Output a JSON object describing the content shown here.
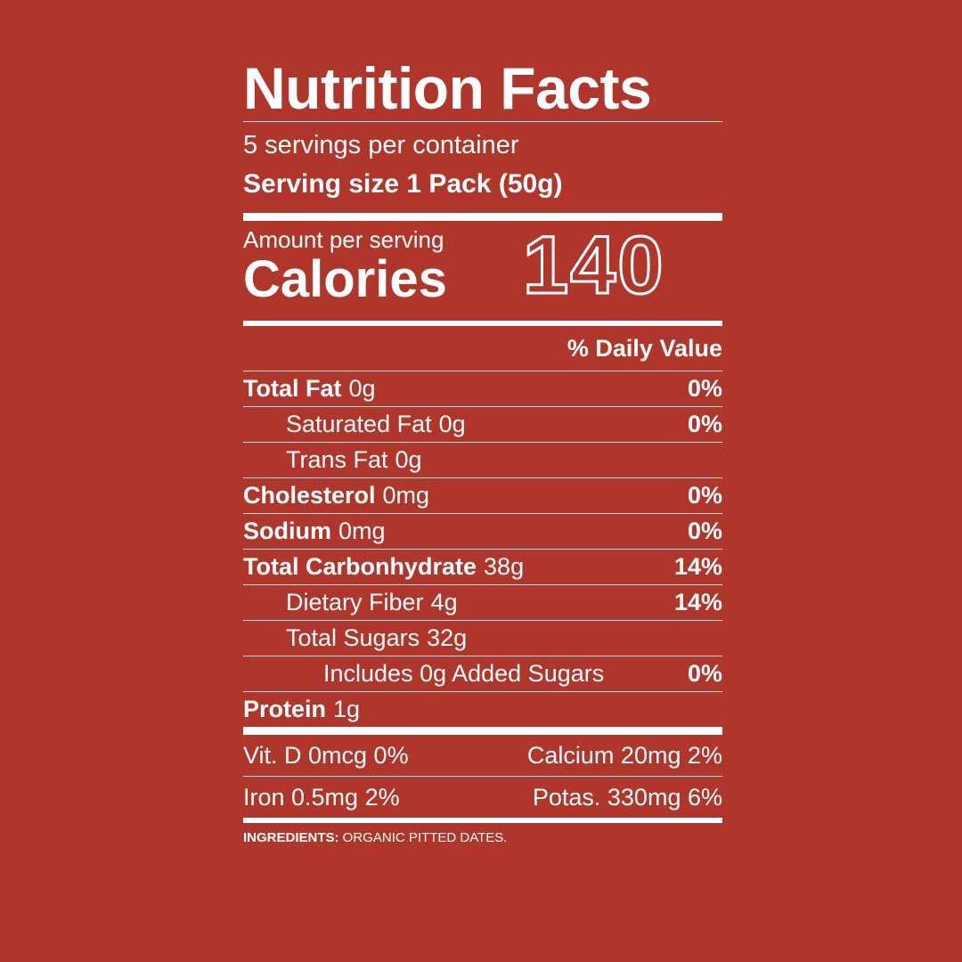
{
  "title": "Nutrition Facts",
  "servings_per_container": "5 servings per container",
  "serving_size": "Serving size 1 Pack (50g)",
  "amount_per_serving": "Amount per serving",
  "calories_label": "Calories",
  "calories_value": "140",
  "daily_value_header": "% Daily Value",
  "nutrients": [
    {
      "name": "Total Fat",
      "amount": "0g",
      "dv": "0%"
    },
    {
      "name": "Saturated Fat",
      "amount": "0g",
      "dv": "0%"
    },
    {
      "name": "Trans Fat",
      "amount": "0g",
      "dv": ""
    },
    {
      "name": "Cholesterol",
      "amount": "0mg",
      "dv": "0%"
    },
    {
      "name": "Sodium",
      "amount": "0mg",
      "dv": "0%"
    },
    {
      "name": "Total Carbonhydrate",
      "amount": "38g",
      "dv": "14%"
    },
    {
      "name": "Dietary Fiber",
      "amount": "4g",
      "dv": "14%"
    },
    {
      "name": "Total Sugars",
      "amount": "32g",
      "dv": ""
    },
    {
      "name": "Includes 0g Added Sugars",
      "amount": "",
      "dv": "0%"
    },
    {
      "name": "Protein",
      "amount": "1g",
      "dv": ""
    }
  ],
  "vitamins": {
    "vit_d": "Vit. D 0mcg 0%",
    "calcium": "Calcium 20mg 2%",
    "iron": "Iron 0.5mg 2%",
    "potassium": "Potas. 330mg 6%"
  },
  "ingredients": {
    "label": "INGREDIENTS:",
    "text": " ORGANIC PITTED DATES."
  },
  "colors": {
    "background": "#b0362b",
    "text": "#ffffff"
  }
}
